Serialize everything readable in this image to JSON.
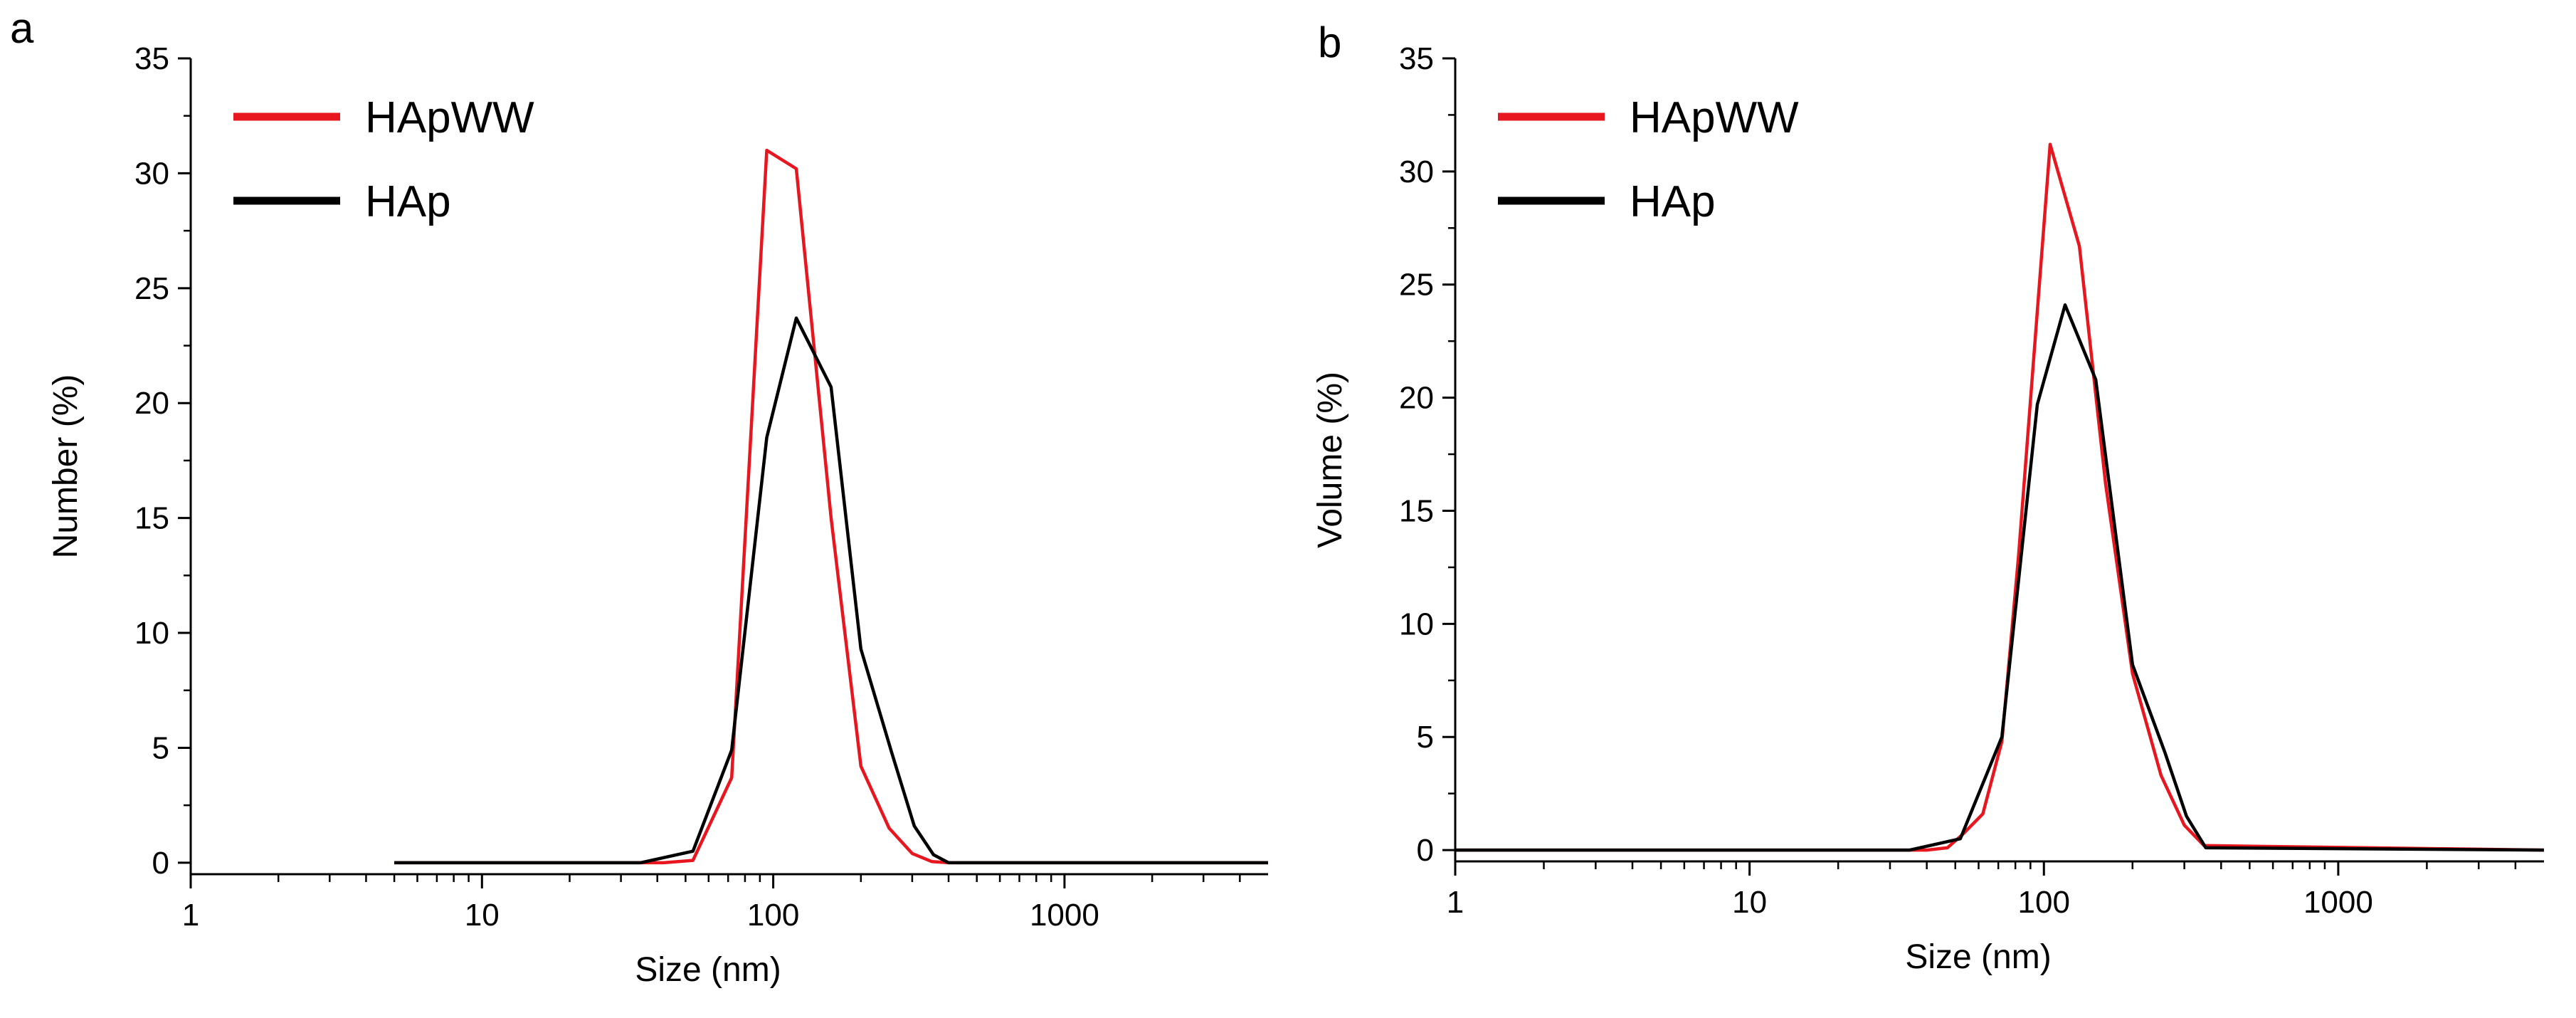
{
  "chart_data": [
    {
      "type": "line",
      "panel_label": "a",
      "title": "",
      "xlabel": "Size (nm)",
      "ylabel": "Number (%)",
      "xscale": "log",
      "xlim": [
        1,
        5000
      ],
      "ylim": [
        -0.5,
        35
      ],
      "xticks": [
        1,
        10,
        100,
        1000
      ],
      "xtick_labels": [
        "1",
        "10",
        "100",
        "1000"
      ],
      "yticks": [
        0,
        5,
        10,
        15,
        20,
        25,
        30,
        35
      ],
      "ytick_labels": [
        "0",
        "5",
        "10",
        "15",
        "20",
        "25",
        "30",
        "35"
      ],
      "legend_position": "top-left",
      "series": [
        {
          "name": "HApWW",
          "color": "#e8161e",
          "x": [
            5,
            33,
            42,
            53,
            72,
            95,
            120,
            158,
            200,
            250,
            300,
            350,
            400,
            5000
          ],
          "y": [
            0,
            0,
            0,
            0.1,
            3.7,
            31.0,
            30.2,
            15.0,
            4.2,
            1.5,
            0.4,
            0.05,
            0,
            0
          ]
        },
        {
          "name": "HAp",
          "color": "#000000",
          "x": [
            5,
            35,
            53,
            72,
            95,
            120,
            158,
            200,
            255,
            305,
            355,
            400,
            5000
          ],
          "y": [
            0,
            0,
            0.5,
            4.9,
            18.5,
            23.7,
            20.7,
            9.3,
            4.8,
            1.6,
            0.35,
            0,
            0
          ]
        }
      ]
    },
    {
      "type": "line",
      "panel_label": "b",
      "title": "",
      "xlabel": "Size (nm)",
      "ylabel": "Volume (%)",
      "xscale": "log",
      "xlim": [
        1,
        5000
      ],
      "ylim": [
        -0.5,
        35
      ],
      "xticks": [
        1,
        10,
        100,
        1000
      ],
      "xtick_labels": [
        "1",
        "10",
        "100",
        "1000"
      ],
      "yticks": [
        0,
        5,
        10,
        15,
        20,
        25,
        30,
        35
      ],
      "ytick_labels": [
        "0",
        "5",
        "10",
        "15",
        "20",
        "25",
        "30",
        "35"
      ],
      "legend_position": "top-left",
      "series": [
        {
          "name": "HApWW",
          "color": "#e8161e",
          "x": [
            1,
            40,
            47,
            53,
            62,
            72,
            82,
            105,
            132,
            162,
            200,
            250,
            300,
            350,
            5000
          ],
          "y": [
            0,
            0,
            0.1,
            0.7,
            1.6,
            4.8,
            13.0,
            31.2,
            26.7,
            16.2,
            7.8,
            3.3,
            1.1,
            0.2,
            0
          ]
        },
        {
          "name": "HAp",
          "color": "#000000",
          "x": [
            1,
            35,
            52,
            72,
            95,
            118,
            150,
            200,
            258,
            305,
            355,
            5000
          ],
          "y": [
            0,
            0,
            0.5,
            5.0,
            19.7,
            24.1,
            20.8,
            8.2,
            4.3,
            1.5,
            0.1,
            0
          ]
        }
      ]
    }
  ]
}
